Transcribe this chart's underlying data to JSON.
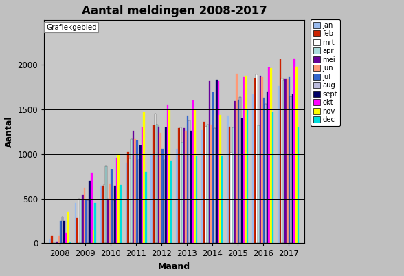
{
  "title": "Aantal meldingen 2008-2017",
  "xlabel": "Maand",
  "ylabel": "Aantal",
  "years": [
    2008,
    2009,
    2010,
    2011,
    2012,
    2013,
    2014,
    2015,
    2016,
    2017
  ],
  "months": [
    "jan",
    "feb",
    "mrt",
    "apr",
    "mei",
    "jun",
    "jul",
    "aug",
    "sept",
    "okt",
    "nov",
    "dec"
  ],
  "colors": [
    "#99bbee",
    "#cc2200",
    "#ffffff",
    "#aadddd",
    "#660099",
    "#ff9977",
    "#3366cc",
    "#bbbbdd",
    "#000066",
    "#ff00ff",
    "#ffff00",
    "#00dddd"
  ],
  "data": {
    "2008": [
      50,
      80,
      5,
      5,
      20,
      80,
      250,
      300,
      250,
      120,
      350,
      10
    ],
    "2009": [
      450,
      280,
      500,
      490,
      540,
      620,
      490,
      480,
      700,
      790,
      150,
      450
    ],
    "2010": [
      640,
      640,
      660,
      870,
      500,
      670,
      830,
      480,
      640,
      960,
      1000,
      650
    ],
    "2011": [
      900,
      1020,
      950,
      1170,
      1260,
      1170,
      1150,
      940,
      1100,
      1300,
      1470,
      800
    ],
    "2012": [
      1000,
      1320,
      1450,
      1330,
      1310,
      1240,
      1060,
      940,
      1300,
      1550,
      1490,
      920
    ],
    "2013": [
      1060,
      1290,
      1300,
      1130,
      1290,
      1260,
      1430,
      1380,
      1260,
      1600,
      1510,
      980
    ],
    "2014": [
      1270,
      1360,
      1310,
      1330,
      1820,
      1330,
      1690,
      1290,
      1830,
      1820,
      1440,
      980
    ],
    "2015": [
      1430,
      1310,
      1010,
      1300,
      1590,
      1900,
      1610,
      1640,
      1400,
      1860,
      1880,
      1490
    ],
    "2016": [
      1670,
      1850,
      1890,
      1320,
      1880,
      1860,
      1630,
      1560,
      1700,
      1970,
      1960,
      1470
    ],
    "2017": [
      1760,
      2060,
      1850,
      1830,
      1840,
      1840,
      1860,
      1650,
      1670,
      2070,
      1980,
      1300
    ]
  },
  "ylim": [
    0,
    2500
  ],
  "yticks": [
    0,
    500,
    1000,
    1500,
    2000
  ],
  "fig_bg_color": "#c0c0c0",
  "plot_bg": "#c8c8c8",
  "annotation_text": "Grafiekgebied"
}
